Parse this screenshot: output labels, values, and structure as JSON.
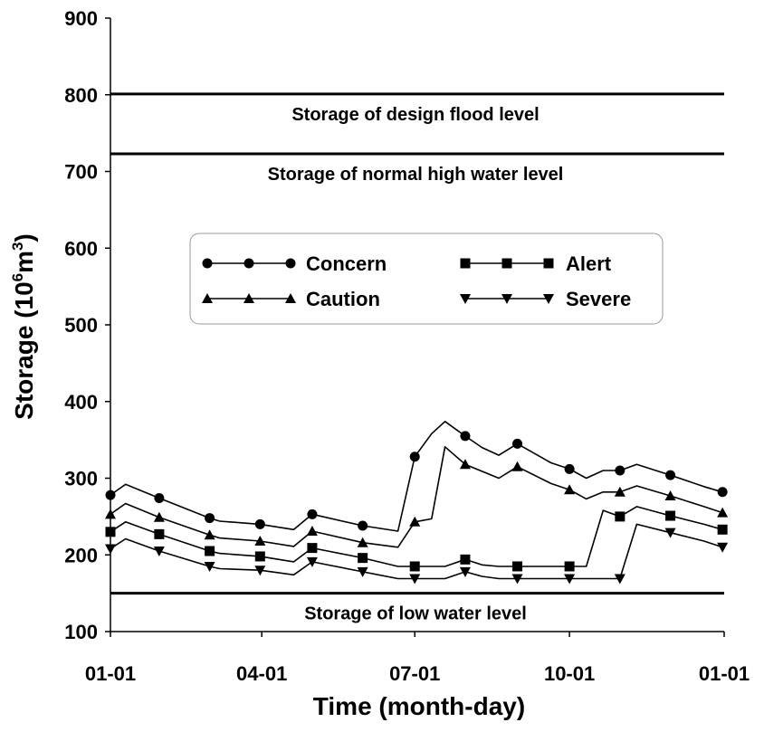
{
  "chart_data": {
    "type": "line",
    "title": "",
    "xlabel": "Time (month-day)",
    "ylabel": "Storage (10^6m^3)",
    "ylabel_base": "Storage (10",
    "ylabel_exp": "6",
    "ylabel_unit": "m",
    "ylabel_exp2": "3",
    "ylabel_close": ")",
    "x_unit": "day of year",
    "xlim": [
      1,
      366
    ],
    "ylim": [
      100,
      900
    ],
    "yticks": [
      100,
      200,
      300,
      400,
      500,
      600,
      700,
      800,
      900
    ],
    "xticks": [
      {
        "label": "01-01",
        "day": 1
      },
      {
        "label": "04-01",
        "day": 91
      },
      {
        "label": "07-01",
        "day": 182
      },
      {
        "label": "10-01",
        "day": 274
      },
      {
        "label": "01-01",
        "day": 366
      }
    ],
    "grid": false,
    "legend_position": "center",
    "reference_lines": [
      {
        "label": "Storage of design flood level",
        "value": 801
      },
      {
        "label": "Storage of normal high water level",
        "value": 723
      },
      {
        "label": "Storage of low water level",
        "value": 150
      }
    ],
    "series": [
      {
        "name": "Concern",
        "marker": "circle",
        "x": [
          1,
          10,
          30,
          60,
          66,
          90,
          110,
          121,
          151,
          172,
          182,
          192,
          200,
          212,
          222,
          232,
          243,
          263,
          274,
          284,
          294,
          304,
          314,
          334,
          354,
          365
        ],
        "y": [
          278,
          292,
          274,
          248,
          244,
          240,
          233,
          253,
          238,
          231,
          328,
          358,
          374,
          355,
          340,
          330,
          345,
          320,
          312,
          300,
          310,
          310,
          318,
          304,
          289,
          282
        ],
        "marker_days": [
          1,
          30,
          60,
          90,
          121,
          151,
          182,
          212,
          243,
          274,
          304,
          334,
          365
        ]
      },
      {
        "name": "Caution",
        "marker": "triangle-up",
        "x": [
          1,
          10,
          30,
          60,
          66,
          90,
          110,
          121,
          151,
          172,
          182,
          192,
          200,
          212,
          222,
          232,
          243,
          263,
          274,
          284,
          294,
          304,
          314,
          334,
          354,
          365
        ],
        "y": [
          253,
          267,
          249,
          226,
          222,
          218,
          211,
          231,
          216,
          210,
          243,
          247,
          341,
          318,
          309,
          300,
          315,
          293,
          285,
          273,
          282,
          282,
          290,
          277,
          263,
          255
        ],
        "marker_days": [
          1,
          30,
          60,
          90,
          121,
          151,
          182,
          212,
          243,
          274,
          304,
          334,
          365
        ]
      },
      {
        "name": "Alert",
        "marker": "square",
        "x": [
          1,
          10,
          30,
          60,
          66,
          90,
          110,
          121,
          151,
          172,
          182,
          192,
          200,
          212,
          222,
          232,
          243,
          263,
          274,
          284,
          294,
          304,
          314,
          334,
          354,
          365
        ],
        "y": [
          230,
          243,
          227,
          205,
          202,
          198,
          191,
          209,
          196,
          185,
          185,
          185,
          185,
          194,
          187,
          185,
          185,
          185,
          185,
          185,
          258,
          250,
          263,
          251,
          240,
          233
        ],
        "marker_days": [
          1,
          30,
          60,
          90,
          121,
          151,
          182,
          212,
          243,
          274,
          304,
          334,
          365
        ]
      },
      {
        "name": "Severe",
        "marker": "triangle-down",
        "x": [
          1,
          10,
          30,
          60,
          66,
          90,
          110,
          121,
          151,
          172,
          182,
          192,
          200,
          212,
          222,
          232,
          243,
          263,
          274,
          284,
          294,
          304,
          314,
          334,
          354,
          365
        ],
        "y": [
          208,
          221,
          205,
          185,
          182,
          180,
          174,
          191,
          178,
          169,
          169,
          169,
          169,
          178,
          172,
          169,
          169,
          169,
          169,
          169,
          169,
          169,
          240,
          229,
          218,
          210
        ],
        "marker_days": [
          1,
          30,
          60,
          90,
          121,
          151,
          182,
          212,
          243,
          274,
          304,
          334,
          365
        ]
      }
    ],
    "legend_order": [
      "Concern",
      "Alert",
      "Caution",
      "Severe"
    ]
  }
}
